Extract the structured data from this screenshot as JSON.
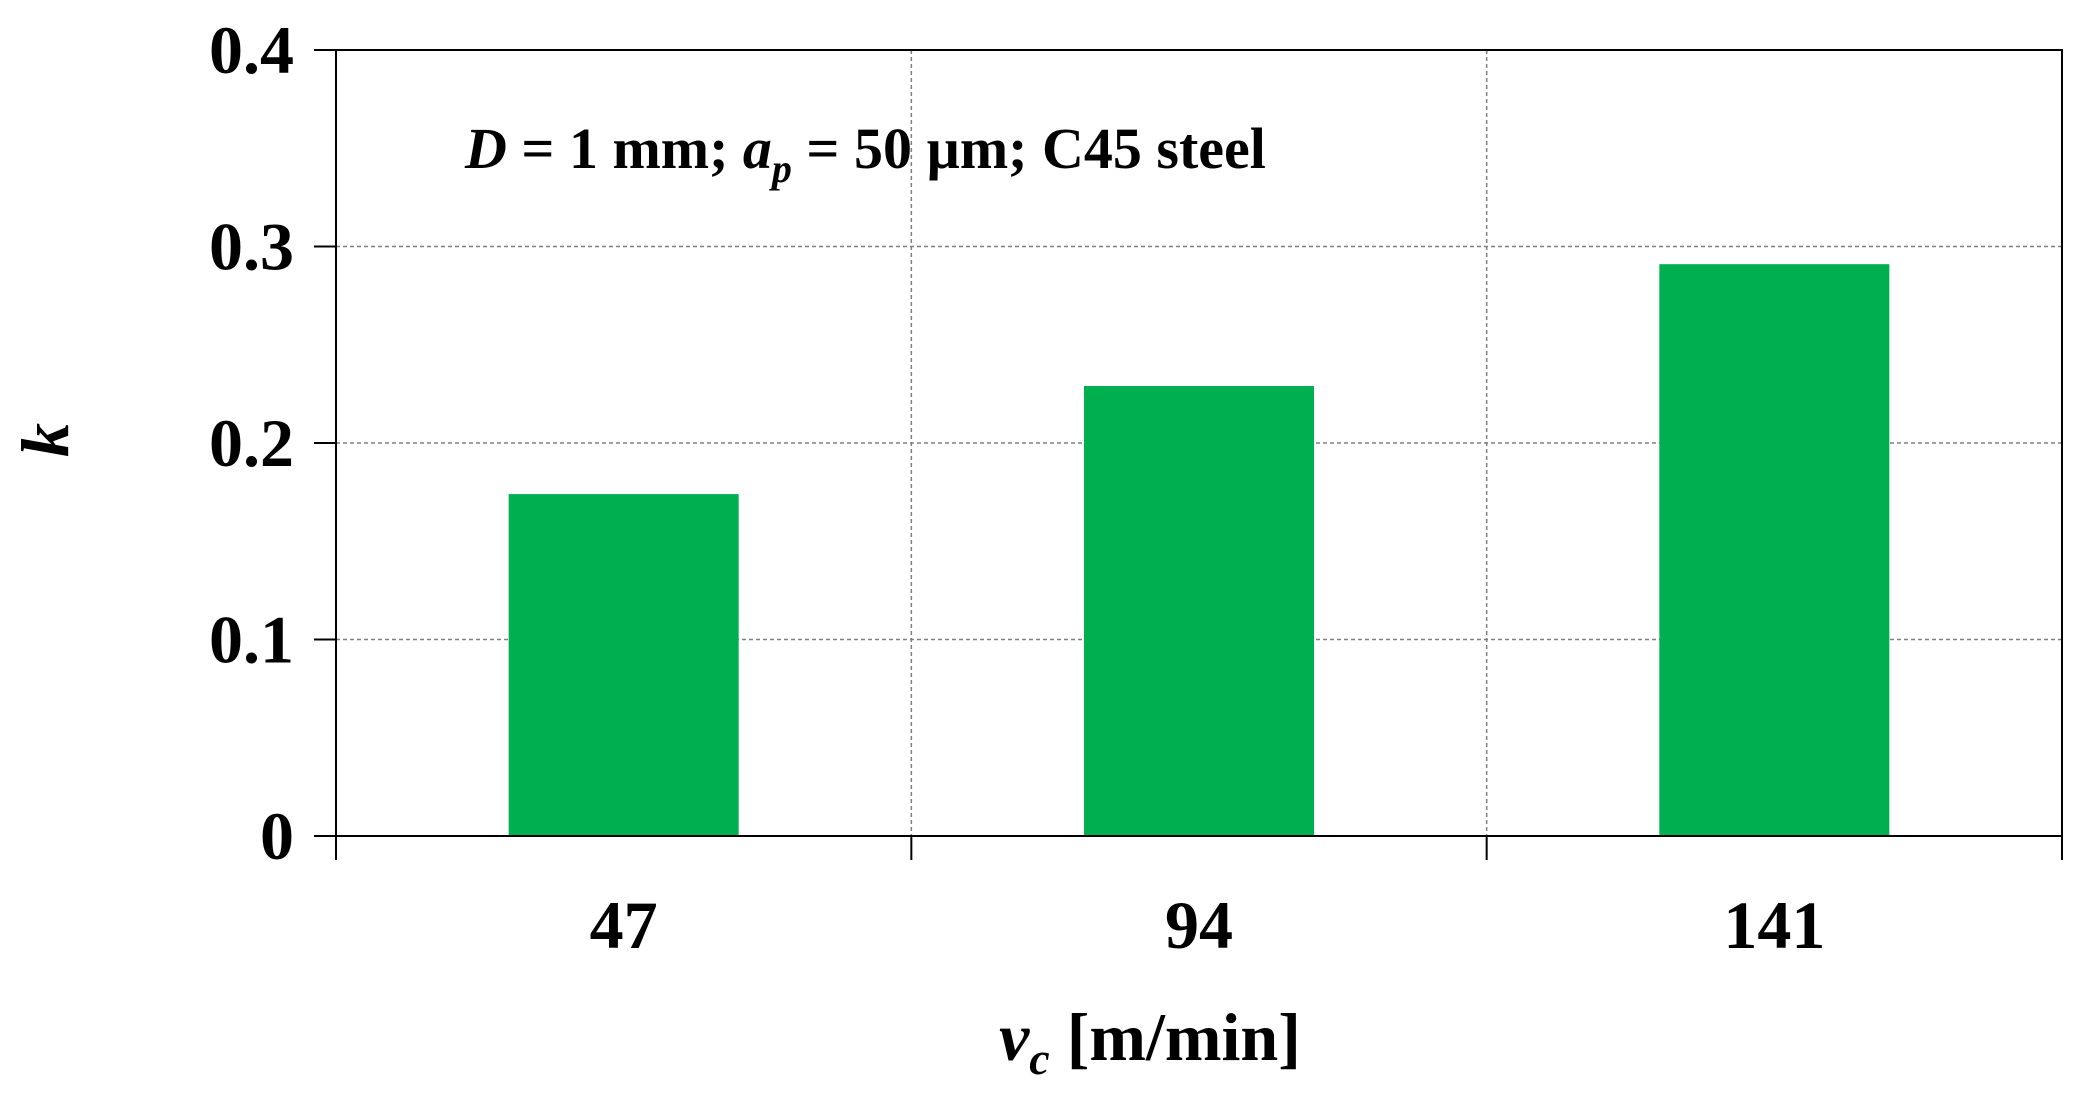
{
  "chart_data": {
    "type": "bar",
    "categories": [
      "47",
      "94",
      "141"
    ],
    "values": [
      0.174,
      0.229,
      0.291
    ],
    "ylim": [
      0,
      0.4
    ],
    "yticks": [
      "0",
      "0.1",
      "0.2",
      "0.3",
      "0.4"
    ],
    "bar_color": "#00B050",
    "grid": true,
    "xlabel": {
      "symbol": "v",
      "subscript": "c",
      "unit": " [m/min]"
    },
    "ylabel": "k",
    "annotation": {
      "d_symbol": "D",
      "d_text": " = 1 mm; ",
      "ap_symbol": "a",
      "ap_subscript": "p",
      "rest_text": " = 50 µm; C45 steel"
    }
  }
}
